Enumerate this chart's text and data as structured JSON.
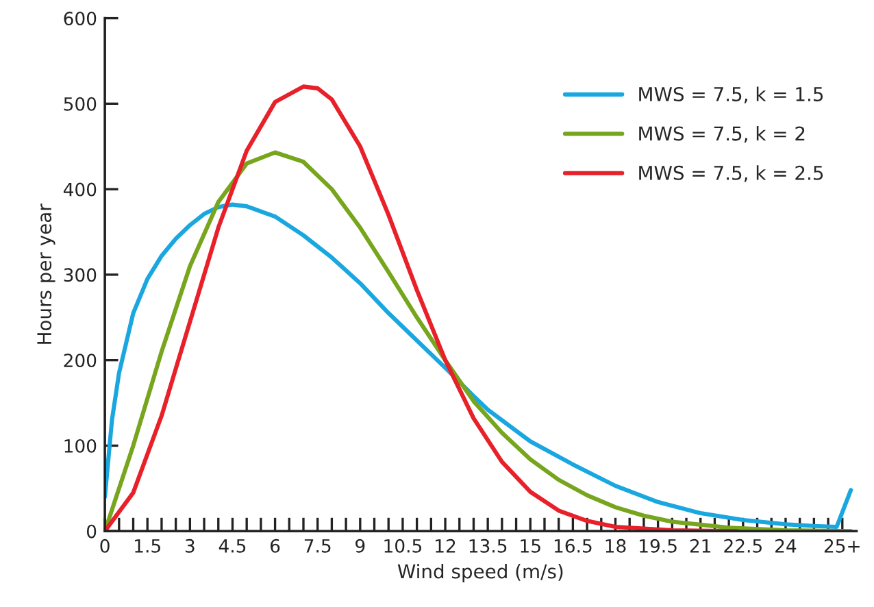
{
  "chart_data": {
    "type": "line",
    "xlabel": "Wind speed (m/s)",
    "ylabel": "Hours per year",
    "xlim": [
      0,
      26.5
    ],
    "ylim": [
      0,
      600
    ],
    "yticks": [
      0,
      100,
      200,
      300,
      400,
      500,
      600
    ],
    "xticks": [
      0,
      {
        "value": 0.5,
        "label": null
      },
      {
        "value": 1,
        "label": null
      },
      1.5,
      {
        "value": 2,
        "label": null
      },
      {
        "value": 2.5,
        "label": null
      },
      3,
      {
        "value": 3.5,
        "label": null
      },
      {
        "value": 4,
        "label": null
      },
      4.5,
      {
        "value": 5,
        "label": null
      },
      {
        "value": 5.5,
        "label": null
      },
      6,
      {
        "value": 6.5,
        "label": null
      },
      {
        "value": 7,
        "label": null
      },
      7.5,
      {
        "value": 8,
        "label": null
      },
      {
        "value": 8.5,
        "label": null
      },
      9,
      {
        "value": 9.5,
        "label": null
      },
      {
        "value": 10,
        "label": null
      },
      10.5,
      {
        "value": 11,
        "label": null
      },
      {
        "value": 11.5,
        "label": null
      },
      12,
      {
        "value": 12.5,
        "label": null
      },
      {
        "value": 13,
        "label": null
      },
      13.5,
      {
        "value": 14,
        "label": null
      },
      {
        "value": 14.5,
        "label": null
      },
      15,
      {
        "value": 15.5,
        "label": null
      },
      {
        "value": 16,
        "label": null
      },
      16.5,
      {
        "value": 17,
        "label": null
      },
      {
        "value": 17.5,
        "label": null
      },
      18,
      {
        "value": 18.5,
        "label": null
      },
      {
        "value": 19,
        "label": null
      },
      19.5,
      {
        "value": 20,
        "label": null
      },
      {
        "value": 20.5,
        "label": null
      },
      21,
      {
        "value": 21.5,
        "label": null
      },
      {
        "value": 22,
        "label": null
      },
      22.5,
      {
        "value": 23,
        "label": null
      },
      {
        "value": 23.5,
        "label": null
      },
      24,
      {
        "value": 24.5,
        "label": null
      },
      {
        "value": 25,
        "label": null
      },
      {
        "value": 25.5,
        "label": null
      },
      {
        "value": 26,
        "label": "25+"
      }
    ],
    "grid": false,
    "legend": "top right",
    "marker": "none",
    "line_style": "solid",
    "series": [
      {
        "name": "MWS = 7.5, k = 1.5",
        "color": "#1aa7e0",
        "x": [
          0,
          0.25,
          0.5,
          1,
          1.5,
          2,
          2.5,
          3,
          3.5,
          4,
          4.5,
          5,
          6,
          7,
          7.5,
          8,
          9,
          10,
          11,
          12,
          13,
          13.5,
          15,
          16.5,
          18,
          19.5,
          21,
          22.5,
          24,
          25,
          25.8,
          26.3
        ],
        "values": [
          40,
          130,
          185,
          255,
          295,
          322,
          342,
          358,
          371,
          379,
          382,
          380,
          368,
          346,
          333,
          320,
          290,
          255,
          223,
          191,
          158,
          142,
          105,
          78,
          53,
          34,
          21,
          13,
          8,
          6,
          5,
          48
        ]
      },
      {
        "name": "MWS = 7.5, k = 2",
        "color": "#77a51d",
        "x": [
          0,
          1,
          2,
          3,
          4,
          5,
          6,
          7,
          8,
          9,
          10,
          11,
          12,
          13,
          14,
          15,
          16,
          17,
          18,
          19,
          20,
          22,
          24,
          26.3
        ],
        "values": [
          0,
          100,
          210,
          310,
          385,
          430,
          443,
          432,
          400,
          355,
          303,
          250,
          200,
          152,
          115,
          84,
          60,
          42,
          28,
          18,
          11,
          4,
          1,
          0
        ]
      },
      {
        "name": "MWS = 7.5, k = 2.5",
        "color": "#e8202a",
        "x": [
          0,
          1,
          2,
          3,
          4,
          5,
          6,
          7,
          7.5,
          8,
          9,
          10,
          11,
          12,
          13,
          14,
          15,
          16,
          17,
          18,
          20,
          22.3
        ],
        "values": [
          0,
          45,
          135,
          245,
          355,
          445,
          502,
          520,
          518,
          505,
          450,
          370,
          282,
          200,
          132,
          81,
          46,
          24,
          12,
          5,
          1,
          0
        ]
      }
    ]
  }
}
